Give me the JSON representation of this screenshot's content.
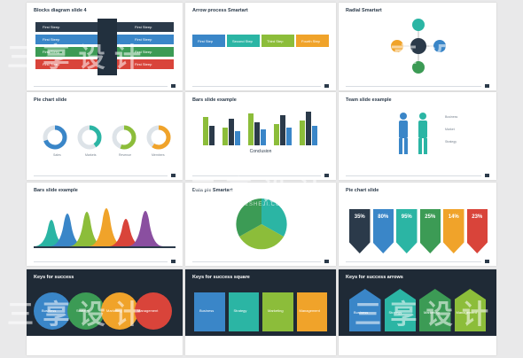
{
  "colors": {
    "navy": "#2b3a4a",
    "blue": "#3a86c8",
    "green": "#3c9b55",
    "lime": "#8cbd3a",
    "orange": "#f0a32a",
    "red": "#d9443a",
    "teal": "#2bb5a4",
    "purple": "#8a4fa0"
  },
  "slides": {
    "s1": {
      "title": "Blocks diagram slide 4",
      "arrow_labels": [
        "First Steep",
        "First Steep",
        "First Steep",
        "First Steep",
        "First Steep",
        "First Steep",
        "First Steep",
        "First Steep"
      ]
    },
    "s2": {
      "title": "Arrow process Smartart",
      "steps": [
        "First Step",
        "Second Step",
        "Third Step",
        "Fourth Step"
      ]
    },
    "s3": {
      "title": "Radial Smartart"
    },
    "s4": {
      "title": "Pie chart slide",
      "percents": [
        "70%",
        "40%",
        "55%",
        "60%"
      ],
      "labels": [
        "Sales",
        "Markets",
        "Revenue",
        "Members"
      ]
    },
    "s5": {
      "title": "Bars slide example",
      "caption": "Conclusion"
    },
    "s6": {
      "title": "Team slide example",
      "labels": [
        "Business",
        "Market",
        "Strategy"
      ]
    },
    "s7": {
      "title": "Bars slide example"
    },
    "s8": {
      "title": "Data pie Smartart"
    },
    "s9": {
      "title": "Pie chart slide",
      "percents": [
        "35%",
        "80%",
        "95%",
        "25%",
        "14%",
        "23%"
      ]
    },
    "s10": {
      "title": "Keys for success",
      "items": [
        "Business",
        "Strategy",
        "Marketing",
        "Management"
      ]
    },
    "s11": {
      "title": "Keys for success square",
      "items": [
        "Business",
        "Strategy",
        "Marketing",
        "Management"
      ]
    },
    "s12": {
      "title": "Keys for success arrows",
      "items": [
        "Business",
        "Strategy",
        "Marketing",
        "Management"
      ]
    }
  },
  "watermark": {
    "main": "三 享 设 计",
    "sub": "WWW.52SHEJI.CC"
  }
}
